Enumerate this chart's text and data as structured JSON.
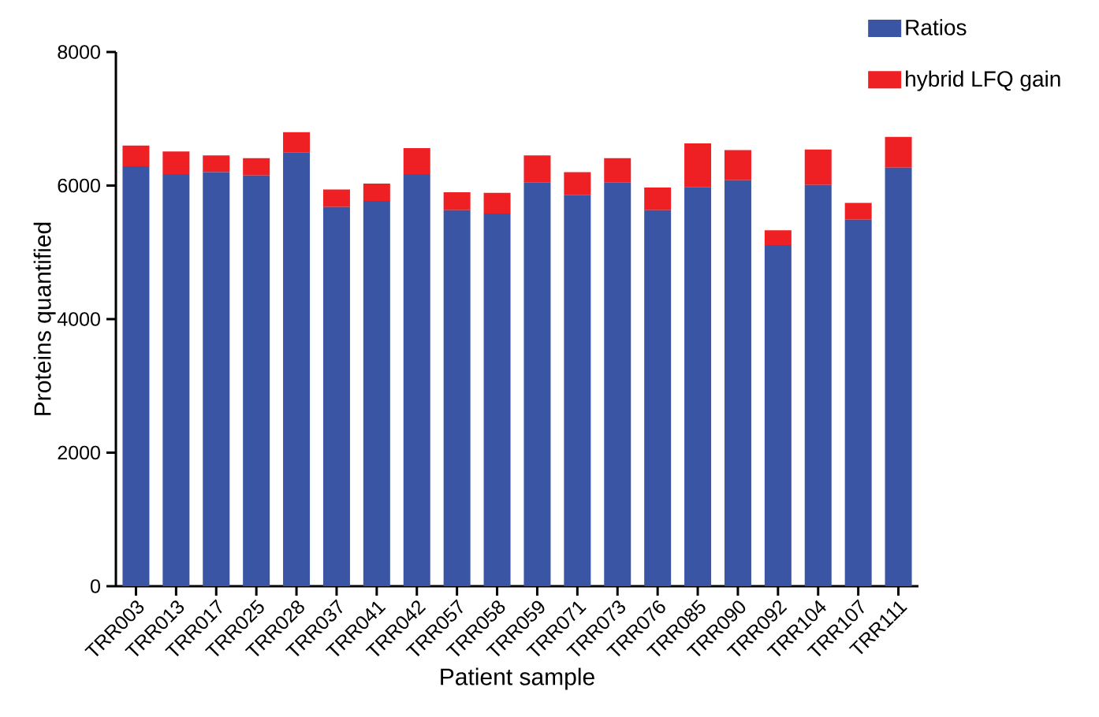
{
  "chart_data": {
    "type": "bar",
    "stacked": true,
    "xlabel": "Patient sample",
    "ylabel": "Proteins quantified",
    "categories": [
      "TRR003",
      "TRR013",
      "TRR017",
      "TRR025",
      "TRR028",
      "TRR037",
      "TRR041",
      "TRR042",
      "TRR057",
      "TRR058",
      "TRR059",
      "TRR071",
      "TRR073",
      "TRR076",
      "TRR085",
      "TRR090",
      "TRR092",
      "TRR104",
      "TRR107",
      "TRR111"
    ],
    "series": [
      {
        "name": "Ratios",
        "color": "#3a55a4",
        "values": [
          6290,
          6170,
          6200,
          6150,
          6500,
          5680,
          5770,
          6170,
          5630,
          5580,
          6050,
          5860,
          6050,
          5630,
          5980,
          6080,
          5110,
          6010,
          5490,
          6270
        ]
      },
      {
        "name": "hybrid LFQ gain",
        "color": "#ee2024",
        "values": [
          310,
          340,
          250,
          260,
          300,
          260,
          260,
          390,
          270,
          310,
          400,
          340,
          360,
          340,
          650,
          450,
          220,
          530,
          250,
          460
        ]
      }
    ],
    "ylim": [
      0,
      8000
    ],
    "yticks": [
      0,
      2000,
      4000,
      6000,
      8000
    ],
    "grid": false,
    "legend": "top right"
  }
}
